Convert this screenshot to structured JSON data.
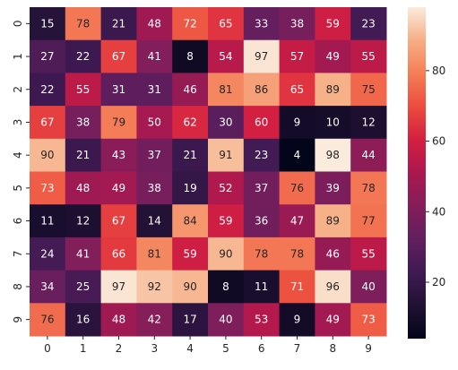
{
  "chart_data": {
    "type": "heatmap",
    "title": "",
    "xlabel": "",
    "ylabel": "",
    "x_categories": [
      "0",
      "1",
      "2",
      "3",
      "4",
      "5",
      "6",
      "7",
      "8",
      "9"
    ],
    "y_categories": [
      "0",
      "1",
      "2",
      "3",
      "4",
      "5",
      "6",
      "7",
      "8",
      "9"
    ],
    "values": [
      [
        15,
        78,
        21,
        48,
        72,
        65,
        33,
        38,
        59,
        23
      ],
      [
        27,
        22,
        67,
        41,
        8,
        54,
        97,
        57,
        49,
        55
      ],
      [
        22,
        55,
        31,
        31,
        46,
        81,
        86,
        65,
        89,
        75
      ],
      [
        67,
        38,
        79,
        50,
        62,
        30,
        60,
        9,
        10,
        12
      ],
      [
        90,
        21,
        43,
        37,
        21,
        91,
        23,
        4,
        98,
        44
      ],
      [
        73,
        48,
        49,
        38,
        19,
        52,
        37,
        76,
        39,
        78
      ],
      [
        11,
        12,
        67,
        14,
        84,
        59,
        36,
        47,
        89,
        77
      ],
      [
        24,
        41,
        66,
        81,
        59,
        90,
        78,
        78,
        46,
        55
      ],
      [
        34,
        25,
        97,
        92,
        90,
        8,
        11,
        71,
        96,
        40
      ],
      [
        76,
        16,
        48,
        42,
        17,
        40,
        53,
        9,
        49,
        73
      ]
    ],
    "colormap": "rocket",
    "vmin": 4,
    "vmax": 98,
    "annotated": true,
    "colorbar_ticks": [
      20,
      40,
      60,
      80
    ]
  }
}
